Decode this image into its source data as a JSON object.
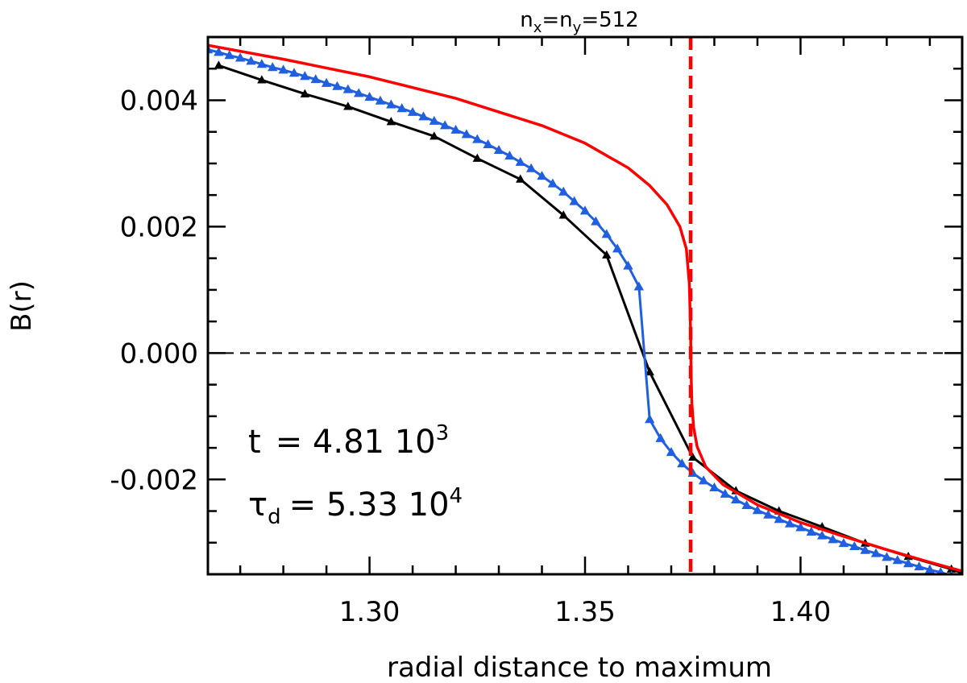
{
  "chart_data": {
    "type": "line",
    "title": {
      "base": "n",
      "sub1": "x",
      "mid": "=n",
      "sub2": "y",
      "tail": "=512"
    },
    "xlabel": "radial distance to maximum",
    "ylabel": "B(r)",
    "xlim": [
      1.2625,
      1.4375
    ],
    "ylim": [
      -0.0035,
      0.005
    ],
    "xticks": [
      1.3,
      1.35,
      1.4
    ],
    "xtick_labels": [
      "1.30",
      "1.35",
      "1.40"
    ],
    "xminor_step": 0.01,
    "yticks": [
      -0.002,
      0.0,
      0.002,
      0.004
    ],
    "ytick_labels": [
      "-0.002",
      "0.000",
      "0.002",
      "0.004"
    ],
    "yminor_step": 0.0005,
    "annotations": {
      "t_label": "t",
      "t_value": "= 4.81 10",
      "t_exp": "3",
      "tau_label": "τ",
      "tau_sub": "d",
      "tau_value": "= 5.33 10",
      "tau_exp": "4"
    },
    "hline": {
      "y": 0.0,
      "color": "#000000",
      "style": "dashed"
    },
    "vline": {
      "x": 1.3745,
      "color": "#ff0000",
      "style": "dashed"
    },
    "series": [
      {
        "color": "#ff0000",
        "marker": "none",
        "x": [
          1.2625,
          1.28,
          1.3,
          1.32,
          1.34,
          1.35,
          1.36,
          1.365,
          1.369,
          1.372,
          1.3735,
          1.3742,
          1.3745,
          1.3746,
          1.3748,
          1.3752,
          1.376,
          1.378,
          1.382,
          1.39,
          1.4,
          1.41,
          1.42,
          1.43,
          1.4375
        ],
        "y": [
          0.00487,
          0.00465,
          0.00437,
          0.00403,
          0.0036,
          0.00332,
          0.00293,
          0.00265,
          0.00235,
          0.002,
          0.00165,
          0.0011,
          0.00035,
          -0.0003,
          -0.0008,
          -0.00118,
          -0.00148,
          -0.0018,
          -0.00208,
          -0.0024,
          -0.00268,
          -0.0029,
          -0.00311,
          -0.00331,
          -0.00345
        ]
      },
      {
        "color": "#1f5fe0",
        "marker": "triangle",
        "x": [
          1.2625,
          1.265,
          1.2675,
          1.27,
          1.2725,
          1.275,
          1.2775,
          1.28,
          1.2825,
          1.285,
          1.2875,
          1.29,
          1.2925,
          1.295,
          1.2975,
          1.3,
          1.3025,
          1.305,
          1.3075,
          1.31,
          1.3125,
          1.315,
          1.3175,
          1.32,
          1.3225,
          1.325,
          1.3275,
          1.33,
          1.3325,
          1.335,
          1.3375,
          1.34,
          1.3425,
          1.345,
          1.3475,
          1.35,
          1.3525,
          1.355,
          1.3575,
          1.36,
          1.3625,
          1.365,
          1.3675,
          1.37,
          1.3725,
          1.375,
          1.3775,
          1.38,
          1.3825,
          1.385,
          1.3875,
          1.39,
          1.3925,
          1.395,
          1.3975,
          1.4,
          1.4025,
          1.405,
          1.4075,
          1.41,
          1.4125,
          1.415,
          1.4175,
          1.42,
          1.4225,
          1.425,
          1.4275,
          1.43,
          1.4325,
          1.435,
          1.4375
        ],
        "y": [
          0.0048,
          0.00476,
          0.00471,
          0.00467,
          0.00462,
          0.00457,
          0.00452,
          0.00448,
          0.00443,
          0.00438,
          0.00433,
          0.00427,
          0.00422,
          0.00417,
          0.00411,
          0.00405,
          0.00399,
          0.00393,
          0.00387,
          0.00381,
          0.00374,
          0.00367,
          0.0036,
          0.00353,
          0.00346,
          0.00338,
          0.0033,
          0.00321,
          0.00312,
          0.00302,
          0.00292,
          0.0028,
          0.00268,
          0.00255,
          0.0024,
          0.00225,
          0.00208,
          0.00188,
          0.00165,
          0.00138,
          0.00105,
          -0.00105,
          -0.00135,
          -0.00157,
          -0.00175,
          -0.0019,
          -0.00202,
          -0.00213,
          -0.00223,
          -0.00232,
          -0.00241,
          -0.00249,
          -0.00256,
          -0.00263,
          -0.0027,
          -0.00276,
          -0.00283,
          -0.00289,
          -0.00295,
          -0.00301,
          -0.00306,
          -0.00312,
          -0.00317,
          -0.00323,
          -0.00328,
          -0.00333,
          -0.00338,
          -0.00343,
          -0.00347,
          -0.00352,
          -0.00356
        ]
      },
      {
        "color": "#000000",
        "marker": "triangle",
        "x": [
          1.265,
          1.275,
          1.285,
          1.295,
          1.305,
          1.315,
          1.325,
          1.335,
          1.345,
          1.355,
          1.365,
          1.375,
          1.385,
          1.395,
          1.405,
          1.415,
          1.425,
          1.435,
          1.4375
        ],
        "y": [
          0.00455,
          0.00432,
          0.0041,
          0.0039,
          0.00366,
          0.00343,
          0.00308,
          0.00275,
          0.00218,
          0.00155,
          -0.0003,
          -0.00165,
          -0.00218,
          -0.0025,
          -0.00275,
          -0.00301,
          -0.00322,
          -0.00342,
          -0.00348
        ]
      }
    ]
  }
}
